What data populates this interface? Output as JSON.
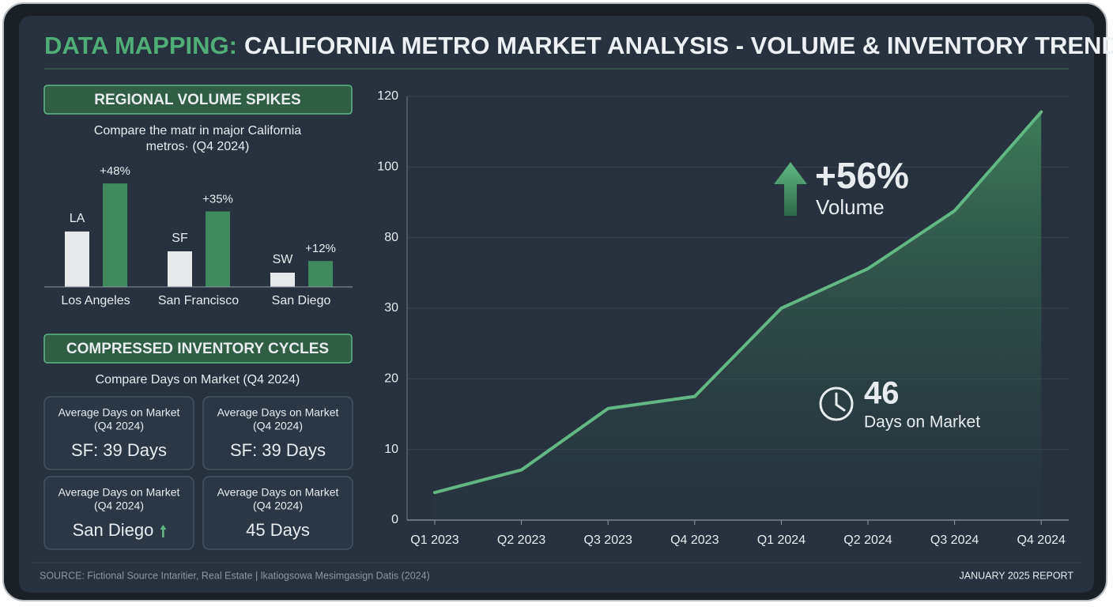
{
  "header": {
    "title_highlight": "DATA MAPPING:",
    "title": "CALIFORNIA METRO MARKET ANALYSIS - VOLUME & INVENTORY TRENDS"
  },
  "chart_data": [
    {
      "type": "bar",
      "title": "REGIONAL VOLUME SPIKES",
      "subtitle": [
        "Compare the matr in major California",
        "metros· (Q4 2024)"
      ],
      "categories": [
        "Los Angeles",
        "San Francisco",
        "San Diego"
      ],
      "series": [
        {
          "color": "#e6e8ea",
          "values": [
            25.7,
            16.5,
            6.6
          ],
          "labels": [
            "LA",
            "SF",
            "SW"
          ]
        },
        {
          "color": "#3f8a5e",
          "values": [
            48,
            35,
            12
          ],
          "value_labels": [
            "+48%",
            "+35%",
            "+12%"
          ]
        }
      ],
      "ylim": [
        0,
        55
      ]
    },
    {
      "type": "line",
      "categories": [
        "Q1 2023",
        "Q2 2023",
        "Q3 2023",
        "Q4 2023",
        "Q1 2024",
        "Q2 2024",
        "Q3 2024",
        "Q4 2024"
      ],
      "series": [
        {
          "color": "#62b885",
          "values": [
            3.9,
            7.1,
            15.8,
            17.5,
            30,
            58,
            87.6,
            115.6
          ]
        }
      ],
      "ylim": [
        0,
        120
      ],
      "yticks": [
        0,
        10,
        20,
        30,
        80,
        100,
        120
      ],
      "grid": true,
      "area": true,
      "annotations": {
        "volume_change": "+56%",
        "volume_label": "Volume",
        "days": "46",
        "days_label": "Days on Market"
      }
    }
  ],
  "inventory": {
    "title": "COMPRESSED INVENTORY CYCLES",
    "subtitle": "Compare Days on Market (Q4 2024)",
    "cards": [
      {
        "label": "Average Days on Market",
        "period": "(Q4 2024)",
        "value": "SF: 39 Days"
      },
      {
        "label": "Average Days on Market",
        "period": "(Q4 2024)",
        "value": "SF: 39 Days"
      },
      {
        "label": "Average Days on Market",
        "period": "(Q4 2024)",
        "value": "San Diego"
      },
      {
        "label": "Average Days on Market",
        "period": "(Q4 2024)",
        "value": "45 Days"
      }
    ]
  },
  "footer": {
    "source": "SOURCE: Fictional Source Intaritier, Real Estate | lkatiogsowa Mesimgasign Datis (2024)",
    "report": "JANUARY 2025 REPORT"
  }
}
